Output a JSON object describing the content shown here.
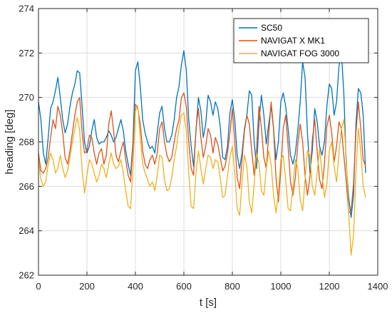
{
  "chart_data": {
    "type": "line",
    "title": "",
    "xlabel": "t [s]",
    "ylabel": "heading [deg]",
    "xlim": [
      0,
      1400
    ],
    "ylim": [
      262,
      274
    ],
    "xticks": [
      0,
      200,
      400,
      600,
      800,
      1000,
      1200,
      1400
    ],
    "yticks": [
      262,
      264,
      266,
      268,
      270,
      272,
      274
    ],
    "xtick_labels": [
      "0",
      "200",
      "400",
      "600",
      "800",
      "1000",
      "1200",
      "1400"
    ],
    "ytick_labels": [
      "262",
      "264",
      "266",
      "268",
      "270",
      "272",
      "274"
    ],
    "grid": true,
    "legend_position": "top-right",
    "series": [
      {
        "name": "SC50",
        "color": "#0072BD",
        "x": [
          0,
          10,
          20,
          30,
          40,
          50,
          60,
          70,
          80,
          90,
          100,
          110,
          120,
          130,
          140,
          150,
          160,
          170,
          180,
          190,
          200,
          210,
          220,
          230,
          240,
          250,
          260,
          270,
          280,
          290,
          300,
          310,
          320,
          330,
          340,
          350,
          360,
          370,
          380,
          390,
          400,
          410,
          420,
          430,
          440,
          450,
          460,
          470,
          480,
          490,
          500,
          510,
          520,
          530,
          540,
          550,
          560,
          570,
          580,
          590,
          600,
          610,
          620,
          630,
          640,
          650,
          660,
          670,
          680,
          690,
          700,
          710,
          720,
          730,
          740,
          750,
          760,
          770,
          780,
          790,
          800,
          810,
          820,
          830,
          840,
          850,
          860,
          870,
          880,
          890,
          900,
          910,
          920,
          930,
          940,
          950,
          960,
          970,
          980,
          990,
          1000,
          1010,
          1020,
          1030,
          1040,
          1050,
          1060,
          1070,
          1080,
          1090,
          1100,
          1110,
          1120,
          1130,
          1140,
          1150,
          1160,
          1170,
          1180,
          1190,
          1200,
          1210,
          1220,
          1230,
          1240,
          1250,
          1260,
          1270,
          1280,
          1290,
          1300,
          1310,
          1320,
          1330,
          1340,
          1350
        ],
        "y": [
          269.8,
          269.0,
          267.5,
          267.0,
          268.2,
          269.5,
          269.8,
          270.3,
          270.9,
          270.0,
          269.0,
          268.4,
          268.8,
          269.6,
          270.2,
          270.6,
          271.2,
          271.1,
          269.6,
          268.0,
          267.5,
          267.8,
          268.5,
          269.0,
          268.2,
          267.9,
          268.0,
          268.0,
          268.2,
          268.5,
          268.3,
          268.0,
          268.2,
          268.6,
          269.0,
          268.5,
          267.6,
          267.0,
          266.5,
          268.0,
          271.2,
          271.6,
          270.5,
          269.0,
          268.4,
          268.0,
          267.7,
          267.8,
          267.5,
          268.4,
          269.3,
          269.6,
          268.6,
          268.0,
          268.0,
          268.3,
          269.0,
          270.0,
          270.5,
          271.5,
          272.1,
          271.2,
          269.0,
          267.8,
          266.9,
          268.5,
          270.0,
          269.4,
          268.2,
          268.8,
          270.1,
          269.8,
          269.2,
          269.8,
          269.5,
          268.7,
          267.3,
          267.2,
          267.8,
          269.3,
          269.9,
          269.0,
          267.4,
          266.8,
          267.5,
          268.6,
          269.2,
          270.3,
          270.1,
          268.0,
          266.8,
          268.9,
          270.1,
          269.2,
          267.9,
          268.8,
          269.6,
          268.6,
          267.2,
          268.0,
          269.8,
          270.2,
          269.6,
          268.6,
          267.4,
          267.0,
          267.5,
          268.5,
          269.8,
          271.6,
          270.9,
          268.4,
          266.6,
          267.6,
          269.5,
          268.9,
          267.8,
          267.4,
          268.0,
          269.6,
          270.6,
          270.4,
          269.2,
          269.8,
          271.4,
          272.0,
          270.2,
          267.0,
          265.5,
          264.6,
          265.6,
          268.8,
          270.4,
          270.2,
          269.2,
          266.6
        ]
      },
      {
        "name": "NAVIGAT X MK1",
        "color": "#D95319",
        "x": [
          0,
          10,
          20,
          30,
          40,
          50,
          60,
          70,
          80,
          90,
          100,
          110,
          120,
          130,
          140,
          150,
          160,
          170,
          180,
          190,
          200,
          210,
          220,
          230,
          240,
          250,
          260,
          270,
          280,
          290,
          300,
          310,
          320,
          330,
          340,
          350,
          360,
          370,
          380,
          390,
          400,
          410,
          420,
          430,
          440,
          450,
          460,
          470,
          480,
          490,
          500,
          510,
          520,
          530,
          540,
          550,
          560,
          570,
          580,
          590,
          600,
          610,
          620,
          630,
          640,
          650,
          660,
          670,
          680,
          690,
          700,
          710,
          720,
          730,
          740,
          750,
          760,
          770,
          780,
          790,
          800,
          810,
          820,
          830,
          840,
          850,
          860,
          870,
          880,
          890,
          900,
          910,
          920,
          930,
          940,
          950,
          960,
          970,
          980,
          990,
          1000,
          1010,
          1020,
          1030,
          1040,
          1050,
          1060,
          1070,
          1080,
          1090,
          1100,
          1110,
          1120,
          1130,
          1140,
          1150,
          1160,
          1170,
          1180,
          1190,
          1200,
          1210,
          1220,
          1230,
          1240,
          1250,
          1260,
          1270,
          1280,
          1290,
          1300,
          1310,
          1320,
          1330,
          1340,
          1350
        ],
        "y": [
          267.5,
          266.7,
          266.6,
          266.8,
          267.3,
          268.2,
          269.0,
          268.6,
          269.6,
          269.2,
          268.4,
          267.3,
          267.0,
          267.6,
          268.4,
          269.2,
          269.8,
          270.0,
          268.4,
          267.5,
          267.6,
          268.3,
          268.2,
          267.5,
          267.0,
          267.5,
          267.7,
          267.0,
          267.4,
          268.8,
          269.4,
          268.5,
          267.4,
          267.1,
          267.6,
          268.0,
          267.2,
          266.5,
          266.2,
          267.8,
          269.7,
          269.5,
          268.8,
          267.6,
          267.0,
          266.8,
          267.2,
          267.4,
          267.0,
          267.5,
          268.6,
          268.9,
          268.0,
          267.4,
          267.1,
          267.3,
          268.0,
          268.6,
          269.0,
          270.0,
          270.2,
          269.6,
          268.0,
          266.8,
          266.5,
          268.6,
          269.5,
          268.2,
          267.3,
          267.8,
          268.6,
          268.3,
          267.5,
          268.2,
          267.9,
          267.3,
          266.7,
          266.9,
          267.5,
          268.4,
          269.5,
          268.0,
          266.4,
          265.9,
          267.2,
          268.5,
          269.2,
          268.8,
          267.6,
          266.5,
          267.7,
          269.6,
          268.6,
          267.3,
          266.8,
          268.3,
          269.8,
          268.6,
          266.4,
          265.3,
          266.7,
          268.6,
          269.2,
          267.8,
          266.2,
          265.6,
          266.4,
          267.9,
          268.8,
          268.0,
          266.5,
          265.6,
          266.4,
          268.1,
          269.0,
          267.6,
          266.3,
          265.9,
          267.0,
          268.7,
          269.2,
          268.4,
          267.1,
          267.8,
          268.9,
          268.6,
          267.4,
          266.2,
          264.8,
          264.9,
          266.1,
          268.4,
          269.8,
          268.6,
          267.2,
          266.9
        ]
      },
      {
        "name": "NAVIGAT FOG 3000",
        "color": "#EDB120",
        "x": [
          0,
          10,
          20,
          30,
          40,
          50,
          60,
          70,
          80,
          90,
          100,
          110,
          120,
          130,
          140,
          150,
          160,
          170,
          180,
          190,
          200,
          210,
          220,
          230,
          240,
          250,
          260,
          270,
          280,
          290,
          300,
          310,
          320,
          330,
          340,
          350,
          360,
          370,
          380,
          390,
          400,
          410,
          420,
          430,
          440,
          450,
          460,
          470,
          480,
          490,
          500,
          510,
          520,
          530,
          540,
          550,
          560,
          570,
          580,
          590,
          600,
          610,
          620,
          630,
          640,
          650,
          660,
          670,
          680,
          690,
          700,
          710,
          720,
          730,
          740,
          750,
          760,
          770,
          780,
          790,
          800,
          810,
          820,
          830,
          840,
          850,
          860,
          870,
          880,
          890,
          900,
          910,
          920,
          930,
          940,
          950,
          960,
          970,
          980,
          990,
          1000,
          1010,
          1020,
          1030,
          1040,
          1050,
          1060,
          1070,
          1080,
          1090,
          1100,
          1110,
          1120,
          1130,
          1140,
          1150,
          1160,
          1170,
          1180,
          1190,
          1200,
          1210,
          1220,
          1230,
          1240,
          1250,
          1260,
          1270,
          1280,
          1290,
          1300,
          1310,
          1320,
          1330,
          1340,
          1350
        ],
        "y": [
          267.2,
          266.3,
          266.0,
          266.2,
          267.0,
          267.5,
          267.2,
          266.6,
          266.8,
          267.4,
          266.8,
          266.4,
          266.7,
          267.3,
          268.0,
          268.6,
          269.1,
          268.5,
          266.7,
          265.7,
          266.5,
          267.2,
          267.0,
          266.6,
          266.2,
          266.5,
          267.0,
          266.8,
          266.4,
          267.0,
          267.5,
          267.0,
          266.8,
          266.9,
          267.2,
          266.6,
          265.8,
          265.1,
          265.0,
          266.8,
          269.4,
          269.6,
          268.2,
          267.0,
          266.6,
          266.3,
          266.0,
          266.2,
          265.8,
          266.5,
          267.4,
          267.3,
          266.3,
          265.8,
          265.9,
          266.4,
          267.2,
          267.8,
          268.6,
          269.2,
          269.3,
          268.5,
          266.6,
          265.1,
          265.0,
          266.6,
          267.6,
          266.8,
          266.1,
          266.8,
          267.4,
          267.3,
          266.8,
          267.2,
          267.1,
          266.4,
          265.5,
          265.6,
          266.5,
          267.3,
          267.8,
          266.6,
          265.0,
          264.7,
          266.2,
          267.4,
          266.9,
          265.3,
          264.8,
          266.1,
          267.5,
          267.0,
          265.8,
          265.6,
          266.8,
          267.6,
          267.0,
          265.6,
          264.8,
          265.7,
          267.2,
          267.4,
          266.3,
          265.0,
          264.9,
          266.0,
          267.2,
          266.8,
          265.4,
          264.9,
          266.3,
          267.6,
          267.4,
          266.0,
          265.6,
          266.6,
          267.7,
          266.6,
          265.5,
          266.1,
          267.6,
          268.0,
          266.9,
          266.2,
          267.5,
          268.6,
          269.0,
          267.3,
          264.8,
          262.9,
          263.8,
          266.6,
          268.6,
          267.6,
          266.0,
          265.5
        ]
      }
    ]
  }
}
